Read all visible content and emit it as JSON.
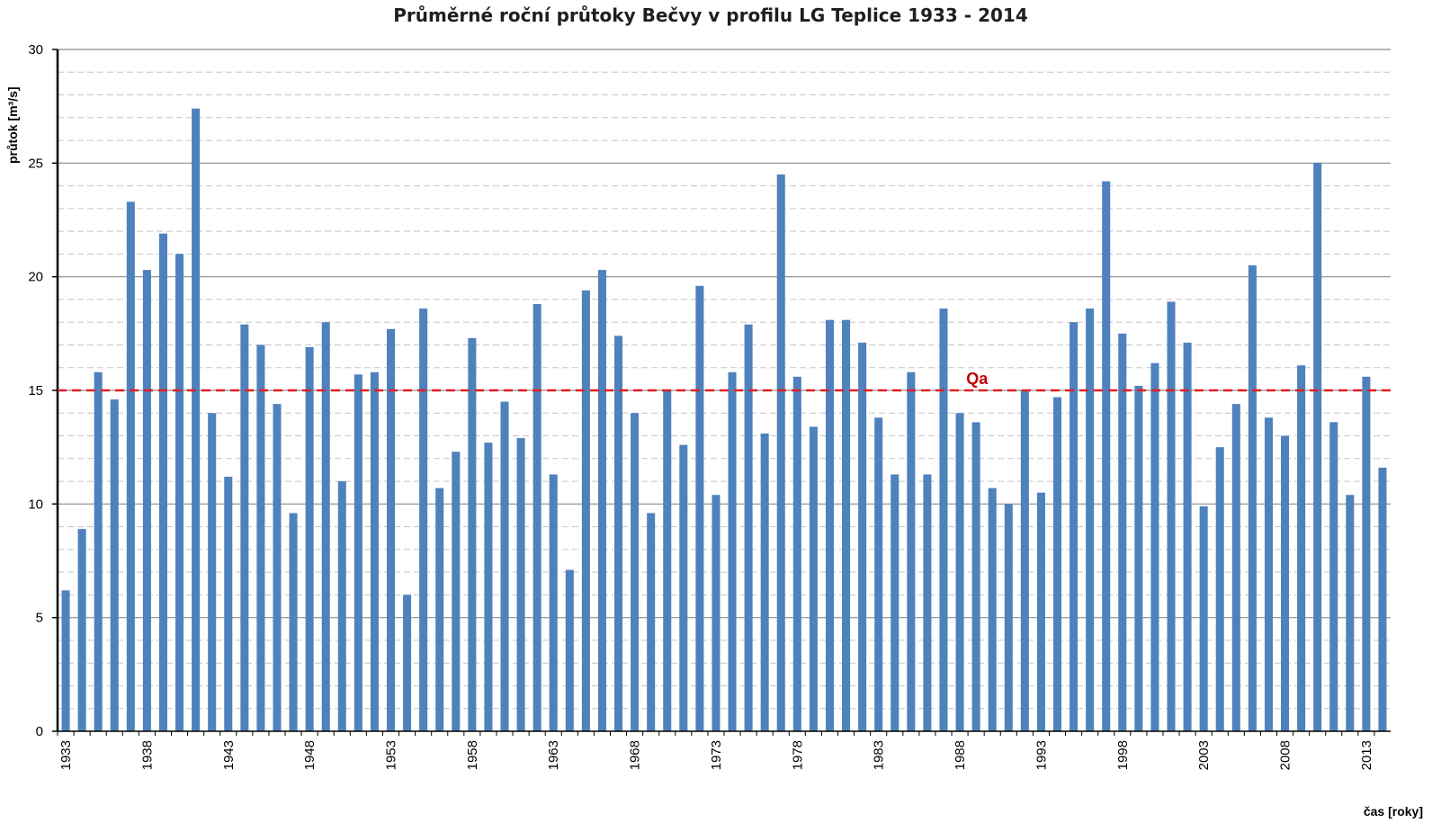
{
  "chart_data": {
    "type": "bar",
    "title": "Průměrné roční průtoky Bečvy v profilu LG Teplice 1933 - 2014",
    "xlabel": "čas [roky]",
    "ylabel": "průtok [m³/s]",
    "ylim": [
      0,
      30
    ],
    "yticks": [
      0,
      5,
      10,
      15,
      20,
      25,
      30
    ],
    "minor_grid_step": 1,
    "grid": true,
    "x_start": 1933,
    "x_end": 2014,
    "x_tick_labels": [
      "1933",
      "1938",
      "1943",
      "1948",
      "1953",
      "1958",
      "1963",
      "1968",
      "1973",
      "1978",
      "1983",
      "1988",
      "1993",
      "1998",
      "2003",
      "2008",
      "2013"
    ],
    "categories": [
      1933,
      1934,
      1935,
      1936,
      1937,
      1938,
      1939,
      1940,
      1941,
      1942,
      1943,
      1944,
      1945,
      1946,
      1947,
      1948,
      1949,
      1950,
      1951,
      1952,
      1953,
      1954,
      1955,
      1956,
      1957,
      1958,
      1959,
      1960,
      1961,
      1962,
      1963,
      1964,
      1965,
      1966,
      1967,
      1968,
      1969,
      1970,
      1971,
      1972,
      1973,
      1974,
      1975,
      1976,
      1977,
      1978,
      1979,
      1980,
      1981,
      1982,
      1983,
      1984,
      1985,
      1986,
      1987,
      1988,
      1989,
      1990,
      1991,
      1992,
      1993,
      1994,
      1995,
      1996,
      1997,
      1998,
      1999,
      2000,
      2001,
      2002,
      2003,
      2004,
      2005,
      2006,
      2007,
      2008,
      2009,
      2010,
      2011,
      2012,
      2013,
      2014
    ],
    "values": [
      6.2,
      8.9,
      15.8,
      14.6,
      23.3,
      20.3,
      21.9,
      21.0,
      27.4,
      14.0,
      11.2,
      17.9,
      17.0,
      14.4,
      9.6,
      16.9,
      18.0,
      11.0,
      15.7,
      15.8,
      17.7,
      6.0,
      18.6,
      10.7,
      12.3,
      17.3,
      12.7,
      14.5,
      12.9,
      18.8,
      11.3,
      7.1,
      19.4,
      20.3,
      17.4,
      14.0,
      9.6,
      15.0,
      12.6,
      19.6,
      10.4,
      15.8,
      17.9,
      13.1,
      24.5,
      15.6,
      13.4,
      18.1,
      18.1,
      17.1,
      13.8,
      11.3,
      15.8,
      11.3,
      18.6,
      14.0,
      13.6,
      10.7,
      10.0,
      15.0,
      10.5,
      14.7,
      18.0,
      18.6,
      24.2,
      17.5,
      15.2,
      16.2,
      18.9,
      17.1,
      9.9,
      12.5,
      14.4,
      20.5,
      13.8,
      13.0,
      16.1,
      25.0,
      13.6,
      10.4,
      15.6,
      11.6
    ],
    "bar_color": "#4f81bd",
    "reference_line": {
      "label": "Qa",
      "value": 15.0,
      "color": "#e02020"
    }
  }
}
